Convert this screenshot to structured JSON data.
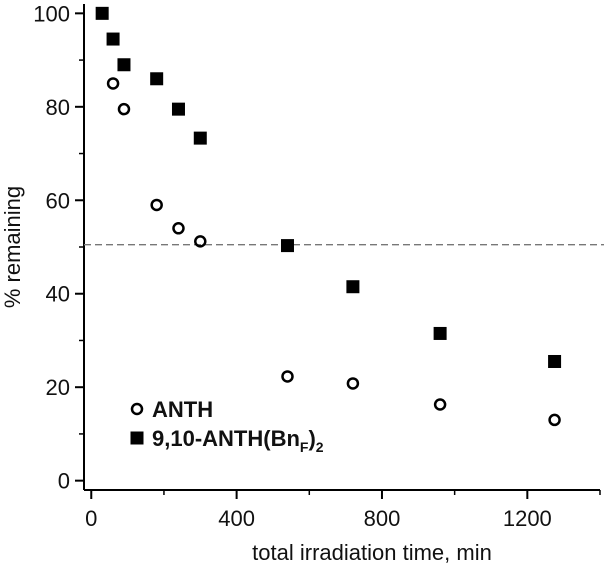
{
  "chart_data": {
    "type": "scatter",
    "title": "",
    "xlabel": "total irradiation time, min",
    "ylabel": "% remaining",
    "xlim": [
      -20,
      1400
    ],
    "ylim": [
      -2,
      102
    ],
    "xticks": [
      0,
      400,
      800,
      1200
    ],
    "yticks": [
      0,
      20,
      40,
      60,
      80,
      100
    ],
    "reference_line": {
      "y": 50.5,
      "style": "dashed"
    },
    "legend": {
      "position": "bottom-left"
    },
    "series": [
      {
        "name": "ANTH",
        "marker": "open-circle",
        "x": [
          60,
          90,
          180,
          240,
          300,
          540,
          720,
          960,
          1275
        ],
        "y": [
          85,
          79.5,
          59,
          54,
          51.2,
          22.3,
          20.8,
          16.3,
          13
        ]
      },
      {
        "name": "9,10-ANTH(Bn",
        "name_subscript": "F",
        "name_suffix_subscript": "2",
        "marker": "filled-square",
        "x": [
          30,
          60,
          90,
          180,
          240,
          300,
          540,
          720,
          960,
          1275
        ],
        "y": [
          100,
          94.5,
          89,
          86,
          79.5,
          73.3,
          50.3,
          41.5,
          31.5,
          25.5
        ]
      }
    ]
  }
}
